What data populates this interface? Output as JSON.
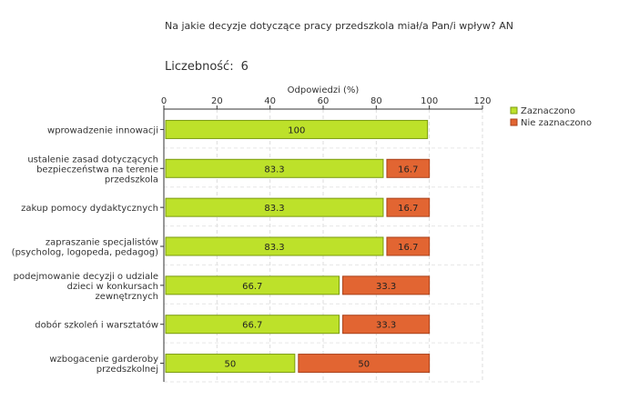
{
  "question": "Na jakie decyzje dotyczące pracy przedszkola miał/a Pan/i wpływ? AN",
  "count": {
    "label": "Liczebność:",
    "value": "6"
  },
  "chart_data": {
    "type": "bar",
    "orientation": "horizontal",
    "stacked": true,
    "xlabel": "Odpowiedzi (%)",
    "xlim": [
      0,
      120
    ],
    "xticks": [
      0,
      20,
      40,
      60,
      80,
      100,
      120
    ],
    "xtick_labels": [
      "0",
      "20",
      "40",
      "60",
      "80",
      "100",
      "120"
    ],
    "grid": true,
    "legend_position": "top-right",
    "categories": [
      [
        "wprowadzenie innowacji"
      ],
      [
        "ustalenie zasad dotyczących",
        "bezpieczeństwa na terenie",
        "przedszkola"
      ],
      [
        "zakup pomocy dydaktycznych"
      ],
      [
        "zapraszanie specjalistów",
        "(psycholog, logopeda, pedagog)"
      ],
      [
        "podejmowanie decyzji o udziale",
        "dzieci w konkursach",
        "zewnętrznych"
      ],
      [
        "dobór szkoleń i warsztatów"
      ],
      [
        "wzbogacenie garderoby",
        "przedszkolnej"
      ]
    ],
    "series": [
      {
        "name": "Zaznaczono",
        "color": "#bde12a",
        "stroke": "#7a9a10",
        "values": [
          100,
          83.3,
          83.3,
          83.3,
          66.7,
          66.7,
          50
        ],
        "labels": [
          "100",
          "83.3",
          "83.3",
          "83.3",
          "66.7",
          "66.7",
          "50"
        ]
      },
      {
        "name": "Nie zaznaczono",
        "color": "#e26532",
        "stroke": "#a8401a",
        "values": [
          0,
          16.7,
          16.7,
          16.7,
          33.3,
          33.3,
          50
        ],
        "labels": [
          "",
          "16.7",
          "16.7",
          "16.7",
          "33.3",
          "33.3",
          "50"
        ]
      }
    ]
  }
}
